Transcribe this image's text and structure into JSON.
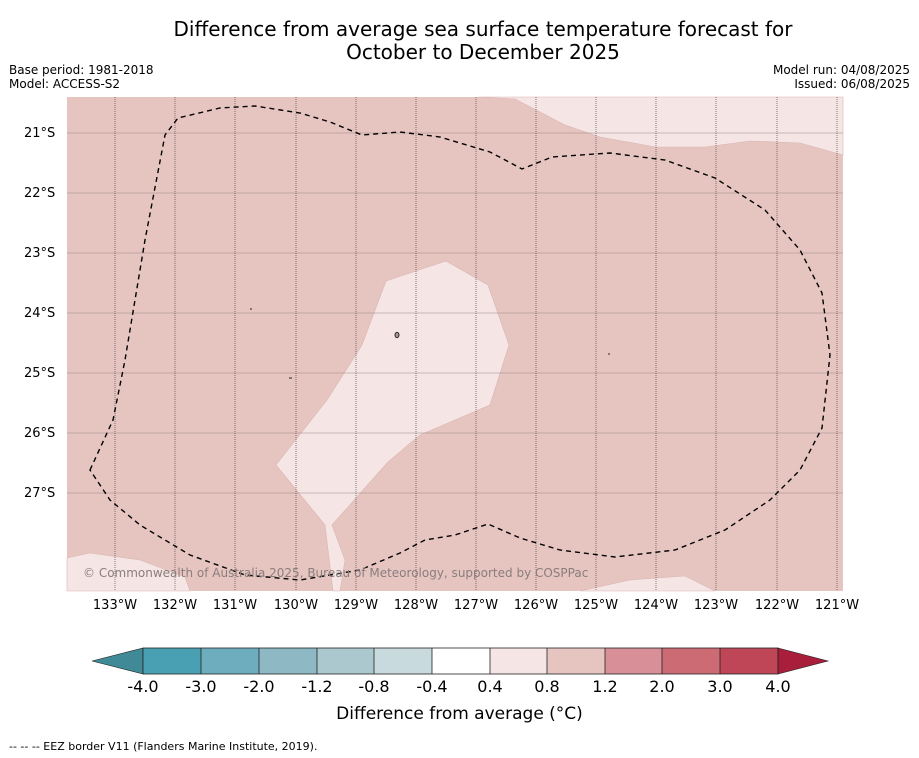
{
  "title_line1": "Difference from average sea surface temperature forecast for",
  "title_line2": "October to December 2025",
  "base_period": "Base period: 1981-2018",
  "model": "Model: ACCESS-S2",
  "model_run": "Model run: 04/08/2025",
  "issued": "Issued: 06/08/2025",
  "copyright": "© Commonwealth of Australia 2025, Bureau of Meteorology, supported by COSPPac",
  "lat_labels": [
    "21°S",
    "22°S",
    "23°S",
    "24°S",
    "25°S",
    "26°S",
    "27°S"
  ],
  "lon_labels": [
    "133°W",
    "132°W",
    "131°W",
    "130°W",
    "129°W",
    "128°W",
    "127°W",
    "126°W",
    "125°W",
    "124°W",
    "123°W",
    "122°W",
    "121°W"
  ],
  "colorbar": {
    "label": "Difference from average (°C)",
    "ticks": [
      "-4.0",
      "-3.0",
      "-2.0",
      "-1.2",
      "-0.8",
      "-0.4",
      "0.4",
      "0.8",
      "1.2",
      "2.0",
      "3.0",
      "4.0"
    ],
    "colors": {
      "below_min": "#3f8a96",
      "bins": [
        "#4aa0b3",
        "#6eadbd",
        "#8eb9c4",
        "#aac8cd",
        "#c8dade",
        "#ffffff",
        "#f5e6e5",
        "#e6c5c1",
        "#d88f97",
        "#cc6b74",
        "#be4657"
      ],
      "above_max": "#a91e3b"
    }
  },
  "legend_note": "--  --  -- EEZ border V11 (Flanders Marine Institute, 2019).",
  "map_colors": {
    "band_0_4_0_8": "#f5e6e5",
    "band_0_8_1_2": "#e6c5c1"
  }
}
